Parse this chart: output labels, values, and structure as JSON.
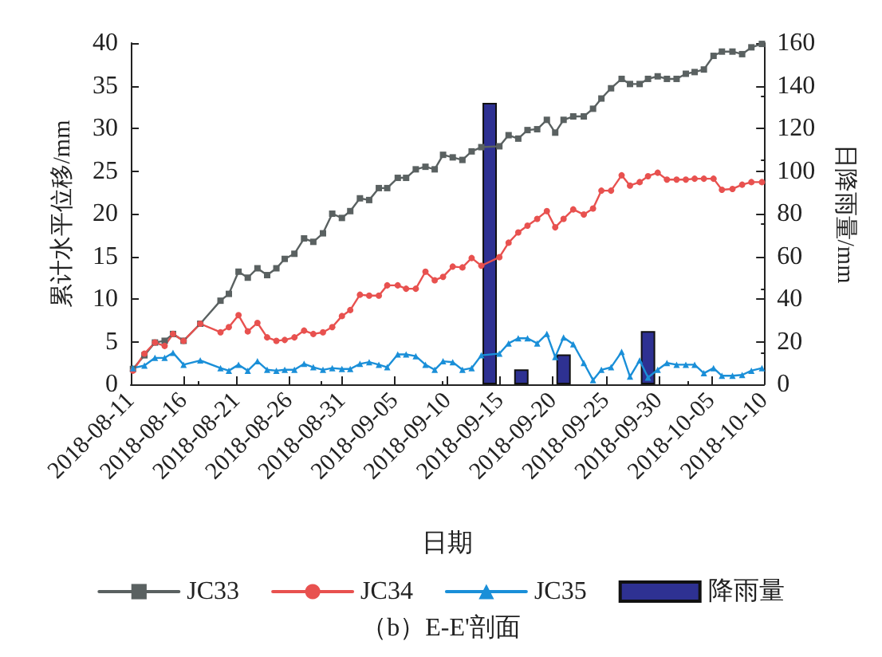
{
  "chart_data": {
    "type": "line",
    "xlabel": "日期",
    "ylabel": "累计水平位移/mm",
    "y2label": "日降雨量/mm",
    "annotations": [
      "（b）E-E'剖面"
    ],
    "x": [
      "2018-08-11T05:00",
      "2018-08-12T07:00",
      "2018-08-13T07:00",
      "2018-08-14T05:00",
      "2018-08-15T00:00",
      "2018-08-16T00:00",
      "2018-08-17T14:00",
      "2018-08-19T12:00",
      "2018-08-20T07:00",
      "2018-08-21T05:00",
      "2018-08-22T02:00",
      "2018-08-23T00:00",
      "2018-08-23T22:00",
      "2018-08-24T19:00",
      "2018-08-25T14:00",
      "2018-08-26T12:00",
      "2018-08-27T10:00",
      "2018-08-28T07:00",
      "2018-08-29T05:00",
      "2018-08-30T02:00",
      "2018-08-31T00:00",
      "2018-08-31T19:00",
      "2018-09-01T17:00",
      "2018-09-02T14:00",
      "2018-09-03T12:00",
      "2018-09-04T07:00",
      "2018-09-05T07:00",
      "2018-09-06T02:00",
      "2018-09-07T00:00",
      "2018-09-07T22:00",
      "2018-09-08T19:00",
      "2018-09-09T14:00",
      "2018-09-10T12:00",
      "2018-09-11T10:00",
      "2018-09-12T07:00",
      "2018-09-13T05:00",
      "2018-09-14T22:00",
      "2018-09-15T19:00",
      "2018-09-16T17:00",
      "2018-09-17T14:00",
      "2018-09-18T12:00",
      "2018-09-19T10:00",
      "2018-09-20T05:00",
      "2018-09-21T00:00",
      "2018-09-21T22:00",
      "2018-09-22T22:00",
      "2018-09-23T19:00",
      "2018-09-24T14:00",
      "2018-09-25T12:00",
      "2018-09-26T12:00",
      "2018-09-27T07:00",
      "2018-09-28T05:00",
      "2018-09-29T00:00",
      "2018-09-29T22:00",
      "2018-09-30T19:00",
      "2018-10-01T17:00",
      "2018-10-02T14:00",
      "2018-10-03T10:00",
      "2018-10-04T07:00",
      "2018-10-05T05:00",
      "2018-10-06T00:00",
      "2018-10-07T00:00",
      "2018-10-07T22:00",
      "2018-10-08T19:00",
      "2018-10-09T19:00"
    ],
    "series": [
      {
        "name": "JC33",
        "color": "#5a6161",
        "marker": "square",
        "values": [
          1.8,
          3.4,
          4.9,
          5.1,
          5.9,
          5.1,
          7.1,
          9.8,
          10.6,
          13.2,
          12.5,
          13.6,
          12.8,
          13.6,
          14.7,
          15.3,
          17.1,
          16.7,
          17.7,
          20,
          19.5,
          20.3,
          21.8,
          21.6,
          23,
          23,
          24.2,
          24.2,
          25.2,
          25.5,
          25.2,
          26.9,
          26.6,
          26.3,
          27.3,
          27.8,
          27.9,
          29.2,
          28.8,
          29.8,
          29.9,
          31,
          29.5,
          31,
          31.4,
          31.4,
          32.3,
          33.5,
          34.7,
          35.8,
          35.2,
          35.2,
          35.8,
          36.1,
          35.8,
          35.8,
          36.4,
          36.6,
          36.9,
          38.5,
          39,
          39,
          38.7,
          39.5,
          39.9
        ]
      },
      {
        "name": "JC34",
        "color": "#e8514f",
        "marker": "circle",
        "values": [
          1.6,
          3.6,
          4.9,
          4.5,
          5.9,
          5.1,
          7.1,
          6.1,
          6.7,
          8.1,
          6.2,
          7.2,
          5.5,
          5.1,
          5.2,
          5.5,
          6.3,
          5.9,
          6.1,
          6.7,
          8,
          8.7,
          10.5,
          10.4,
          10.4,
          11.6,
          11.6,
          11.2,
          11.2,
          13.2,
          12.2,
          12.6,
          13.8,
          13.7,
          14.8,
          13.9,
          14.9,
          16.6,
          17.8,
          18.6,
          19.4,
          20.3,
          18.4,
          19.4,
          20.5,
          19.9,
          20.6,
          22.7,
          22.7,
          24.5,
          23.3,
          23.7,
          24.4,
          24.8,
          24,
          24,
          24,
          24.1,
          24.1,
          24.1,
          22.8,
          22.9,
          23.4,
          23.7,
          23.7
        ]
      },
      {
        "name": "JC35",
        "color": "#1a8fd8",
        "marker": "triangle",
        "values": [
          1.9,
          2.2,
          3.1,
          3.1,
          3.7,
          2.3,
          2.8,
          1.9,
          1.6,
          2.3,
          1.6,
          2.7,
          1.7,
          1.6,
          1.7,
          1.7,
          2.4,
          2,
          1.7,
          1.9,
          1.8,
          1.8,
          2.4,
          2.6,
          2.3,
          2,
          3.5,
          3.5,
          3.3,
          2.3,
          1.7,
          2.7,
          2.6,
          1.7,
          1.9,
          3.4,
          3.6,
          4.8,
          5.4,
          5.4,
          4.8,
          5.9,
          3.2,
          5.5,
          4.7,
          2.5,
          0.5,
          1.7,
          2,
          3.8,
          0.9,
          2.8,
          0.8,
          1.7,
          2.5,
          2.3,
          2.3,
          2.3,
          1.3,
          1.9,
          1,
          1,
          1.1,
          1.6,
          1.9
        ]
      },
      {
        "name": "降雨量",
        "type": "bar",
        "axis": "y2",
        "color": "#2e3192",
        "x": [
          "2018-09-14",
          "2018-09-17",
          "2018-09-21",
          "2018-09-29"
        ],
        "values": [
          132,
          7,
          14,
          25
        ]
      }
    ],
    "xlim": [
      "2018-08-11",
      "2018-10-10"
    ],
    "xticks": [
      "2018-08-11",
      "2018-08-16",
      "2018-08-21",
      "2018-08-26",
      "2018-08-31",
      "2018-09-05",
      "2018-09-10",
      "2018-09-15",
      "2018-09-20",
      "2018-09-25",
      "2018-09-30",
      "2018-10-05",
      "2018-10-10"
    ],
    "ylim": [
      0,
      40
    ],
    "yticks": [
      0,
      5,
      10,
      15,
      20,
      25,
      30,
      35,
      40
    ],
    "y2lim": [
      0,
      160
    ],
    "y2ticks": [
      0,
      20,
      40,
      60,
      80,
      100,
      120,
      140,
      160
    ],
    "grid": false,
    "legend": "bottom"
  }
}
